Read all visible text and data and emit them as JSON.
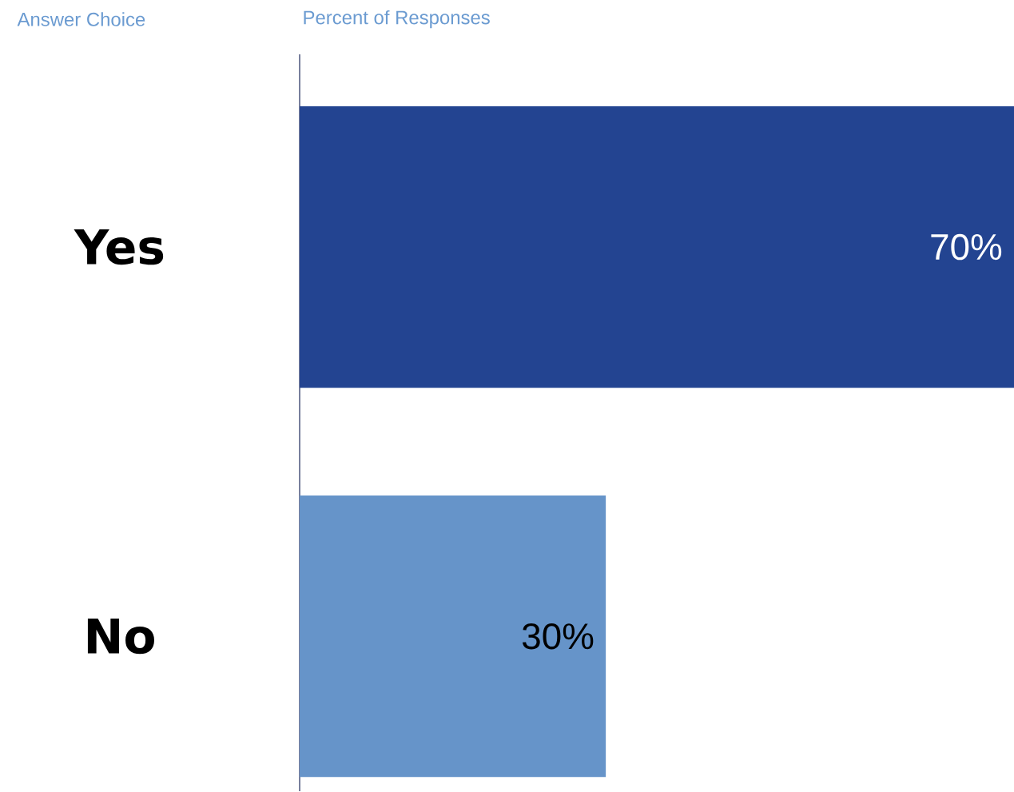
{
  "chart_data": {
    "type": "bar",
    "orientation": "horizontal",
    "xlabel": "Percent of Responses",
    "ylabel": "Answer Choice",
    "categories": [
      "Yes",
      "No"
    ],
    "values": [
      70,
      30
    ],
    "colors": [
      "#234491",
      "#6694c9"
    ],
    "value_labels": [
      "70%",
      "30%"
    ],
    "xlim": [
      0,
      70
    ]
  }
}
